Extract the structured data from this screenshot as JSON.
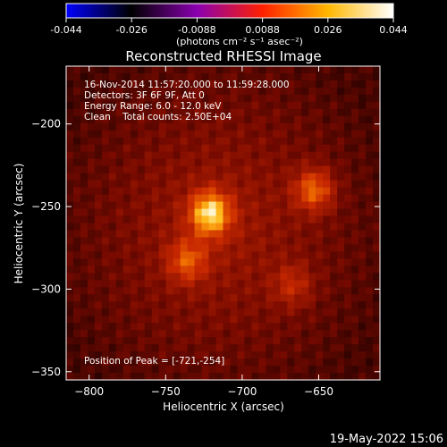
{
  "chart_data": {
    "type": "heatmap",
    "title": "Reconstructed RHESSI Image",
    "xlabel": "Heliocentric X (arcsec)",
    "ylabel": "Heliocentric Y (arcsec)",
    "xlim": [
      -815,
      -610
    ],
    "ylim": [
      -355,
      -165
    ],
    "xticks": [
      -800,
      -750,
      -700,
      -650
    ],
    "yticks": [
      -350,
      -300,
      -250,
      -200
    ],
    "colorbar": {
      "min": -0.044,
      "max": 0.044,
      "ticks": [
        "-0.044",
        "-0.026",
        "-0.0088",
        "0.0088",
        "0.026",
        "0.044"
      ],
      "label": "(photons cm⁻² s⁻¹ asec⁻²)",
      "colors": [
        "#0000ff",
        "#000000",
        "#8a00b0",
        "#ff2000",
        "#ffb800",
        "#ffffff"
      ]
    },
    "annotations": [
      "16-Nov-2014 11:57:20.000 to 11:59:28.000",
      "Detectors: 3F 6F 9F, Att 0",
      "Energy Range: 6.0 - 12.0 keV",
      "Clean    Total counts: 2.50E+04"
    ],
    "peak_label": "Position of Peak = [-721,-254]",
    "sources": [
      {
        "x": -721,
        "y": -254,
        "value": 0.044
      },
      {
        "x": -653,
        "y": -240,
        "value": 0.03
      },
      {
        "x": -736,
        "y": -283,
        "value": 0.024
      },
      {
        "x": -667,
        "y": -298,
        "value": 0.016
      }
    ]
  },
  "footer": {
    "date": "19-May-2022 15:06"
  }
}
